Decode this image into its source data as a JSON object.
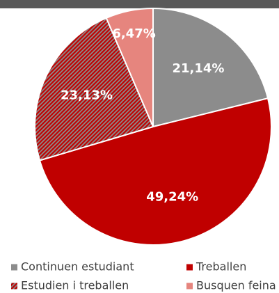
{
  "chart_data": {
    "type": "pie",
    "categories": [
      "Continuen estudiant",
      "Treballen",
      "Estudien i treballen",
      "Busquen feina"
    ],
    "values": [
      21.14,
      49.24,
      23.13,
      6.47
    ],
    "value_labels": [
      "21,14%",
      "49,24%",
      "23,13%",
      "6,47%"
    ],
    "colors": [
      "#8c8c8c",
      "#c00000",
      "#c00000",
      "#e6857e"
    ],
    "hatched": [
      false,
      false,
      true,
      false
    ]
  }
}
